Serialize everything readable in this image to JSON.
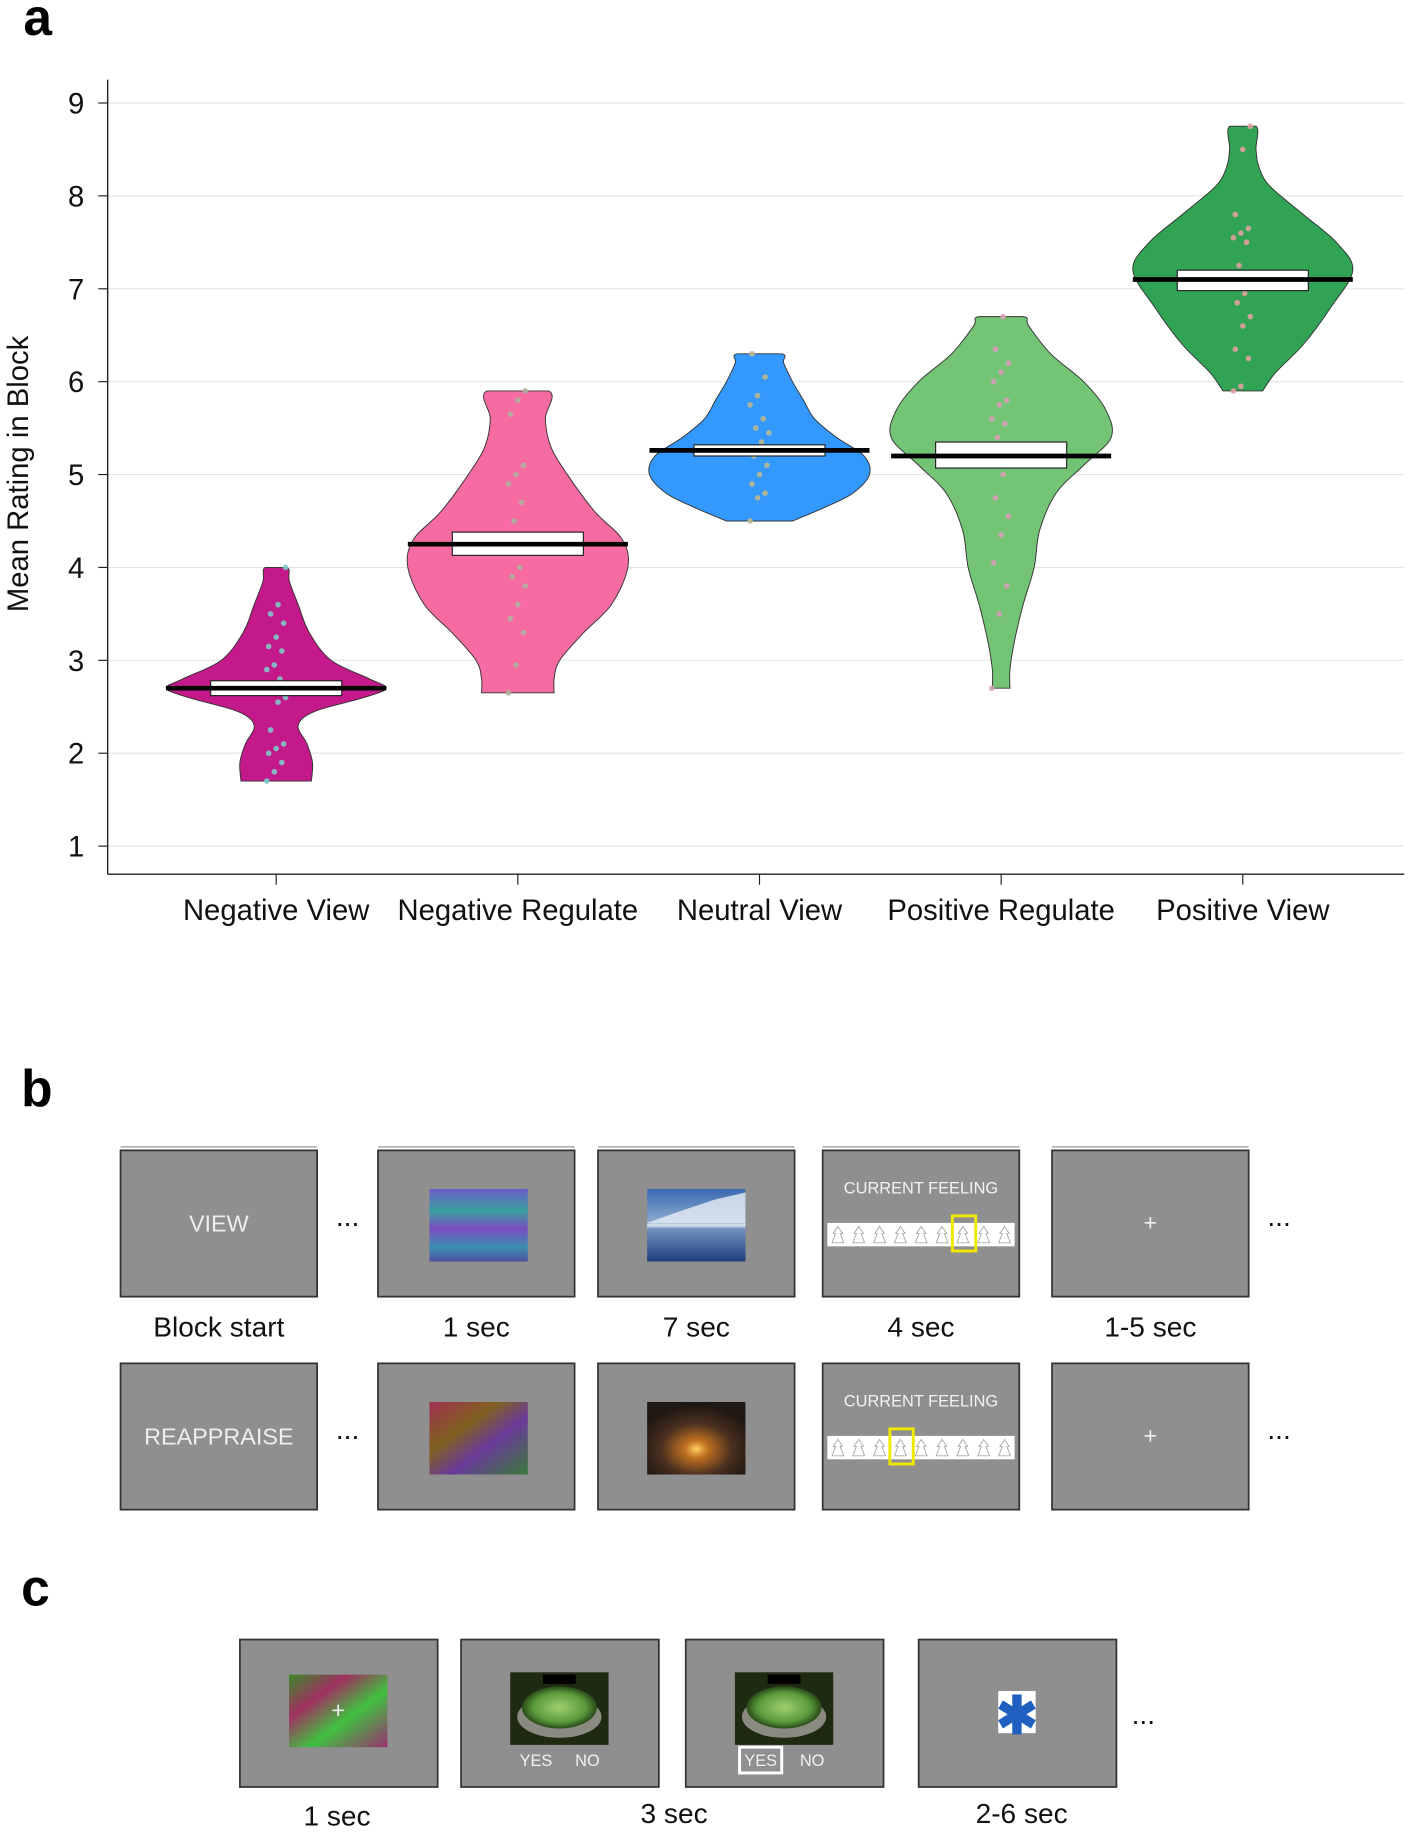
{
  "panels": {
    "a": "a",
    "b": "b",
    "c": "c"
  },
  "chart_data": {
    "type": "violin",
    "ylabel": "Mean Rating in Block",
    "xlabel": "",
    "ylim": [
      1,
      9
    ],
    "yticks": [
      "1",
      "2",
      "3",
      "4",
      "5",
      "6",
      "7",
      "8",
      "9"
    ],
    "grid": "horizontal",
    "categories": [
      "Negative View",
      "Negative Regulate",
      "Neutral View",
      "Positive Regulate",
      "Positive View"
    ],
    "series": [
      {
        "category": "Negative View",
        "color": "#C4198A",
        "dot_color": "#7fc8c8",
        "mean": 2.7,
        "box": [
          2.62,
          2.78
        ],
        "min": 1.7,
        "max": 4.0,
        "density": [
          [
            1.7,
            0.32
          ],
          [
            1.9,
            0.33
          ],
          [
            2.1,
            0.28
          ],
          [
            2.3,
            0.2
          ],
          [
            2.45,
            0.35
          ],
          [
            2.6,
            0.8
          ],
          [
            2.7,
            1.0
          ],
          [
            2.8,
            0.85
          ],
          [
            3.0,
            0.5
          ],
          [
            3.3,
            0.3
          ],
          [
            3.6,
            0.2
          ],
          [
            3.85,
            0.12
          ],
          [
            4.0,
            0.1
          ]
        ],
        "points": [
          1.7,
          1.8,
          1.9,
          2.0,
          2.05,
          2.1,
          2.25,
          2.55,
          2.6,
          2.7,
          2.8,
          2.9,
          2.95,
          3.1,
          3.15,
          3.25,
          3.4,
          3.5,
          3.6,
          4.0
        ]
      },
      {
        "category": "Negative Regulate",
        "color": "#F76BA3",
        "dot_color": "#b0b0a0",
        "mean": 4.25,
        "box": [
          4.13,
          4.38
        ],
        "min": 2.65,
        "max": 5.9,
        "density": [
          [
            2.65,
            0.33
          ],
          [
            2.8,
            0.33
          ],
          [
            3.0,
            0.38
          ],
          [
            3.3,
            0.6
          ],
          [
            3.6,
            0.85
          ],
          [
            4.0,
            1.0
          ],
          [
            4.3,
            0.95
          ],
          [
            4.6,
            0.7
          ],
          [
            5.0,
            0.45
          ],
          [
            5.3,
            0.3
          ],
          [
            5.6,
            0.25
          ],
          [
            5.9,
            0.28
          ]
        ],
        "points": [
          2.65,
          2.95,
          3.3,
          3.45,
          3.6,
          3.8,
          3.9,
          4.0,
          4.2,
          4.5,
          4.7,
          4.9,
          5.0,
          5.1,
          5.65,
          5.8,
          5.9
        ]
      },
      {
        "category": "Neutral View",
        "color": "#3399FF",
        "dot_color": "#b8b890",
        "mean": 5.26,
        "box": [
          5.2,
          5.32
        ],
        "min": 4.5,
        "max": 6.3,
        "density": [
          [
            4.5,
            0.3
          ],
          [
            4.65,
            0.6
          ],
          [
            4.8,
            0.85
          ],
          [
            5.0,
            1.0
          ],
          [
            5.2,
            0.95
          ],
          [
            5.4,
            0.7
          ],
          [
            5.6,
            0.5
          ],
          [
            5.8,
            0.4
          ],
          [
            6.0,
            0.3
          ],
          [
            6.2,
            0.22
          ],
          [
            6.3,
            0.2
          ]
        ],
        "points": [
          4.5,
          4.75,
          4.8,
          4.9,
          5.0,
          5.1,
          5.2,
          5.35,
          5.45,
          5.5,
          5.6,
          5.75,
          5.85,
          6.05,
          6.3
        ]
      },
      {
        "category": "Positive Regulate",
        "color": "#74C476",
        "dot_color": "#d8a0b8",
        "mean": 5.2,
        "box": [
          5.07,
          5.35
        ],
        "min": 2.7,
        "max": 6.7,
        "density": [
          [
            2.7,
            0.08
          ],
          [
            2.9,
            0.08
          ],
          [
            3.2,
            0.12
          ],
          [
            3.6,
            0.2
          ],
          [
            4.0,
            0.3
          ],
          [
            4.4,
            0.35
          ],
          [
            4.8,
            0.5
          ],
          [
            5.1,
            0.75
          ],
          [
            5.4,
            1.0
          ],
          [
            5.7,
            0.95
          ],
          [
            6.0,
            0.75
          ],
          [
            6.3,
            0.45
          ],
          [
            6.6,
            0.25
          ],
          [
            6.7,
            0.2
          ]
        ],
        "points": [
          2.7,
          3.5,
          3.8,
          4.05,
          4.35,
          4.55,
          4.75,
          5.0,
          5.3,
          5.4,
          5.55,
          5.6,
          5.75,
          5.8,
          6.0,
          6.1,
          6.2,
          6.35,
          6.7
        ]
      },
      {
        "category": "Positive View",
        "color": "#31A354",
        "dot_color": "#e0a0a0",
        "mean": 7.1,
        "box": [
          6.98,
          7.2
        ],
        "min": 5.9,
        "max": 8.75,
        "density": [
          [
            5.9,
            0.18
          ],
          [
            6.1,
            0.3
          ],
          [
            6.4,
            0.55
          ],
          [
            6.8,
            0.8
          ],
          [
            7.2,
            1.0
          ],
          [
            7.5,
            0.85
          ],
          [
            7.8,
            0.55
          ],
          [
            8.1,
            0.25
          ],
          [
            8.3,
            0.15
          ],
          [
            8.5,
            0.12
          ],
          [
            8.75,
            0.12
          ]
        ],
        "points": [
          5.9,
          5.95,
          6.25,
          6.35,
          6.6,
          6.7,
          6.85,
          6.95,
          7.1,
          7.25,
          7.5,
          7.55,
          7.6,
          7.65,
          7.8,
          8.5,
          8.75
        ]
      }
    ]
  },
  "panel_b": {
    "row1": {
      "cue": "VIEW",
      "feeling_label": "CURRENT FEELING",
      "selected_rating": 7
    },
    "row2": {
      "cue": "REAPPRAISE",
      "feeling_label": "CURRENT FEELING",
      "selected_rating": 4
    },
    "rating_scale_count": 9,
    "fixation": "+",
    "ellipsis": "...",
    "durations": [
      "Block start",
      "1 sec",
      "7 sec",
      "4 sec",
      "1-5 sec"
    ]
  },
  "panel_c": {
    "fixation": "+",
    "yes": "YES",
    "no": "NO",
    "ellipsis": "...",
    "durations": [
      "1 sec",
      "3 sec",
      "2-6 sec"
    ]
  }
}
